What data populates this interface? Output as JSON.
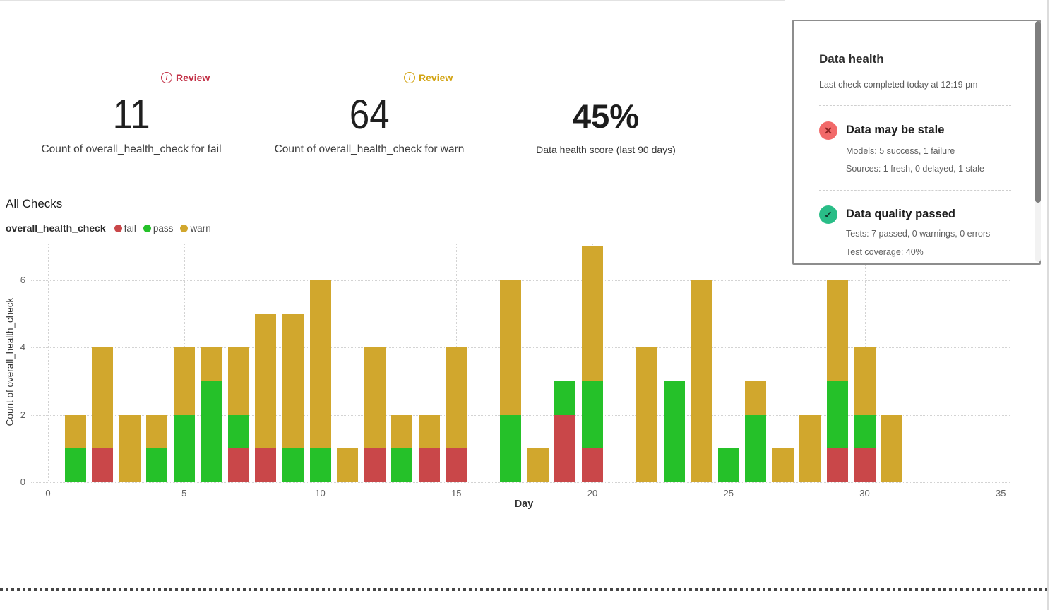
{
  "metrics": [
    {
      "review_label": "Review",
      "review_color": "#c22f45",
      "value": "11",
      "label": "Count of overall_health_check for fail"
    },
    {
      "review_label": "Review",
      "review_color": "#d2a312",
      "value": "64",
      "label": "Count of overall_health_check for warn"
    },
    {
      "value": "45%",
      "label": "Data health score (last 90 days)"
    }
  ],
  "section_title": "All Checks",
  "legend": {
    "series_name": "overall_health_check",
    "items": [
      {
        "label": "fail",
        "color": "#c94749"
      },
      {
        "label": "pass",
        "color": "#25c129"
      },
      {
        "label": "warn",
        "color": "#d1a72d"
      }
    ]
  },
  "chart_data": {
    "type": "bar",
    "stacked": true,
    "title": "All Checks",
    "xlabel": "Day",
    "ylabel": "Count of overall_health_check",
    "x": [
      1,
      2,
      3,
      4,
      5,
      6,
      7,
      8,
      9,
      10,
      11,
      12,
      13,
      14,
      15,
      16,
      17,
      18,
      19,
      20,
      21,
      22,
      23,
      24,
      25,
      26,
      27,
      28,
      29,
      30,
      31
    ],
    "series": [
      {
        "name": "fail",
        "color": "#c94749",
        "values": [
          0,
          1,
          0,
          0,
          0,
          0,
          1,
          1,
          0,
          0,
          0,
          1,
          0,
          1,
          1,
          0,
          0,
          0,
          2,
          1,
          0,
          0,
          0,
          0,
          0,
          0,
          0,
          0,
          1,
          1,
          0
        ]
      },
      {
        "name": "pass",
        "color": "#25c129",
        "values": [
          1,
          0,
          0,
          1,
          2,
          3,
          1,
          0,
          1,
          1,
          0,
          0,
          1,
          0,
          0,
          0,
          2,
          0,
          1,
          2,
          0,
          0,
          3,
          0,
          1,
          2,
          0,
          0,
          2,
          1,
          0
        ]
      },
      {
        "name": "warn",
        "color": "#d1a72d",
        "values": [
          1,
          3,
          2,
          1,
          2,
          1,
          2,
          4,
          4,
          5,
          1,
          3,
          1,
          1,
          3,
          0,
          4,
          1,
          0,
          4,
          0,
          4,
          0,
          6,
          0,
          1,
          1,
          2,
          3,
          2,
          2
        ]
      }
    ],
    "xticks": [
      0,
      5,
      10,
      15,
      20,
      25,
      30,
      35
    ],
    "yticks": [
      0,
      2,
      4,
      6
    ],
    "xlim": [
      0,
      36.5
    ],
    "ylim": [
      0,
      7
    ],
    "grid": "dotted",
    "legend_position": "top-left"
  },
  "health_panel": {
    "title": "Data health",
    "subtitle": "Last check completed today at 12:19 pm",
    "sections": [
      {
        "icon": "x-circle",
        "title": "Data may be stale",
        "lines": [
          "Models: 5 success, 1 failure",
          "Sources: 1 fresh, 0 delayed, 1 stale"
        ]
      },
      {
        "icon": "check-circle",
        "title": "Data quality passed",
        "lines": [
          "Tests: 7 passed, 0 warnings, 0 errors",
          "Test coverage: 40%"
        ]
      }
    ]
  }
}
